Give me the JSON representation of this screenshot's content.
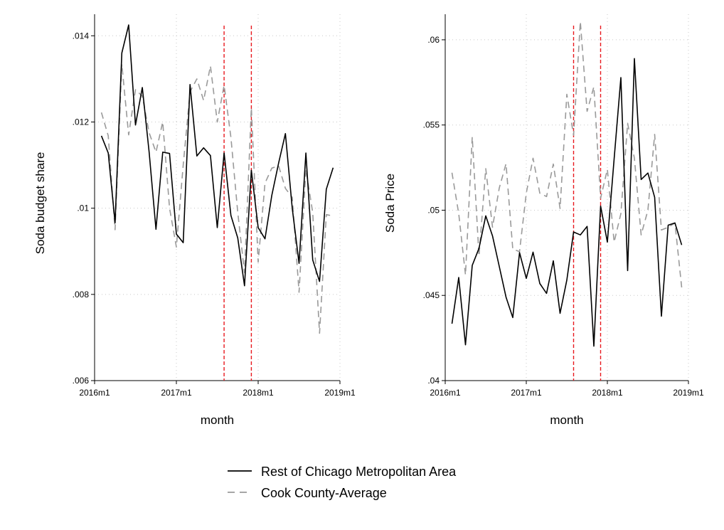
{
  "chart_data": [
    {
      "type": "line",
      "title": "",
      "xlabel": "month",
      "ylabel": "Soda budget share",
      "xlim": [
        "2016m1",
        "2019m1"
      ],
      "ylim": [
        0.006,
        0.0145
      ],
      "grid": true,
      "xticks": [
        "2016m1",
        "2017m1",
        "2018m1",
        "2019m1"
      ],
      "yticks": [
        ".006",
        ".008",
        ".01",
        ".012",
        ".014"
      ],
      "vlines": [
        "2017m8",
        "2017m12"
      ],
      "x": [
        "2016m2",
        "2016m3",
        "2016m4",
        "2016m5",
        "2016m6",
        "2016m7",
        "2016m8",
        "2016m9",
        "2016m10",
        "2016m11",
        "2016m12",
        "2017m1",
        "2017m2",
        "2017m3",
        "2017m4",
        "2017m5",
        "2017m6",
        "2017m7",
        "2017m8",
        "2017m9",
        "2017m10",
        "2017m11",
        "2017m12",
        "2018m1",
        "2018m2",
        "2018m3",
        "2018m4",
        "2018m5",
        "2018m6",
        "2018m7",
        "2018m8",
        "2018m9",
        "2018m10",
        "2018m11",
        "2018m12"
      ],
      "series": [
        {
          "name": "Rest of Chicago Metropolitan Area",
          "values": [
            0.01168,
            0.01128,
            0.00966,
            0.0136,
            0.01425,
            0.01193,
            0.0128,
            0.0113,
            0.00951,
            0.0113,
            0.01127,
            0.0094,
            0.0092,
            0.01287,
            0.01121,
            0.0114,
            0.01122,
            0.00955,
            0.01128,
            0.00983,
            0.00931,
            0.0082,
            0.01088,
            0.00955,
            0.00929,
            0.0103,
            0.01105,
            0.01173,
            0.01,
            0.00872,
            0.01128,
            0.0088,
            0.0083,
            0.01044,
            0.01094
          ]
        },
        {
          "name": "Cook County-Average",
          "values": [
            0.01222,
            0.01168,
            0.0095,
            0.01334,
            0.0117,
            0.01275,
            0.0126,
            0.01175,
            0.0113,
            0.012,
            0.01,
            0.0091,
            0.011,
            0.0127,
            0.013,
            0.0125,
            0.0133,
            0.012,
            0.01285,
            0.01164,
            0.0099,
            0.0085,
            0.01233,
            0.00875,
            0.01058,
            0.01093,
            0.01098,
            0.01046,
            0.01025,
            0.00805,
            0.0109,
            0.0099,
            0.0071,
            0.00985,
            0.00982
          ]
        }
      ]
    },
    {
      "type": "line",
      "title": "",
      "xlabel": "month",
      "ylabel": "Soda Price",
      "xlim": [
        "2016m1",
        "2019m1"
      ],
      "ylim": [
        0.04,
        0.0615
      ],
      "grid": true,
      "xticks": [
        "2016m1",
        "2017m1",
        "2018m1",
        "2019m1"
      ],
      "yticks": [
        ".04",
        ".045",
        ".05",
        ".055",
        ".06"
      ],
      "vlines": [
        "2017m8",
        "2017m12"
      ],
      "x": [
        "2016m2",
        "2016m3",
        "2016m4",
        "2016m5",
        "2016m6",
        "2016m7",
        "2016m8",
        "2016m9",
        "2016m10",
        "2016m11",
        "2016m12",
        "2017m1",
        "2017m2",
        "2017m3",
        "2017m4",
        "2017m5",
        "2017m6",
        "2017m7",
        "2017m8",
        "2017m9",
        "2017m10",
        "2017m11",
        "2017m12",
        "2018m1",
        "2018m2",
        "2018m3",
        "2018m4",
        "2018m5",
        "2018m6",
        "2018m7",
        "2018m8",
        "2018m9",
        "2018m10",
        "2018m11",
        "2018m12"
      ],
      "series": [
        {
          "name": "Rest of Chicago Metropolitan Area",
          "values": [
            0.04334,
            0.04605,
            0.0421,
            0.04676,
            0.04776,
            0.04967,
            0.04849,
            0.0467,
            0.0449,
            0.0437,
            0.04751,
            0.046,
            0.04754,
            0.0457,
            0.04512,
            0.04703,
            0.04395,
            0.0459,
            0.04872,
            0.04855,
            0.04905,
            0.04202,
            0.05024,
            0.04813,
            0.053,
            0.05778,
            0.04646,
            0.0589,
            0.0518,
            0.05218,
            0.05076,
            0.04378,
            0.04912,
            0.04925,
            0.04796
          ]
        },
        {
          "name": "Cook County-Average",
          "values": [
            0.0522,
            0.0498,
            0.0462,
            0.0543,
            0.0473,
            0.05244,
            0.049,
            0.0513,
            0.05273,
            0.04772,
            0.04757,
            0.051,
            0.05305,
            0.051,
            0.0508,
            0.05271,
            0.0501,
            0.0568,
            0.0544,
            0.06107,
            0.0558,
            0.05724,
            0.0507,
            0.0524,
            0.04813,
            0.0498,
            0.0551,
            0.05305,
            0.04855,
            0.05,
            0.05445,
            0.04884,
            0.049,
            0.04925,
            0.04547
          ]
        }
      ]
    }
  ],
  "colors": {
    "series_rest": "#000000",
    "series_cook": "#9a9a9a",
    "vline": "#e8191e",
    "grid": "#c8c8c8"
  }
}
